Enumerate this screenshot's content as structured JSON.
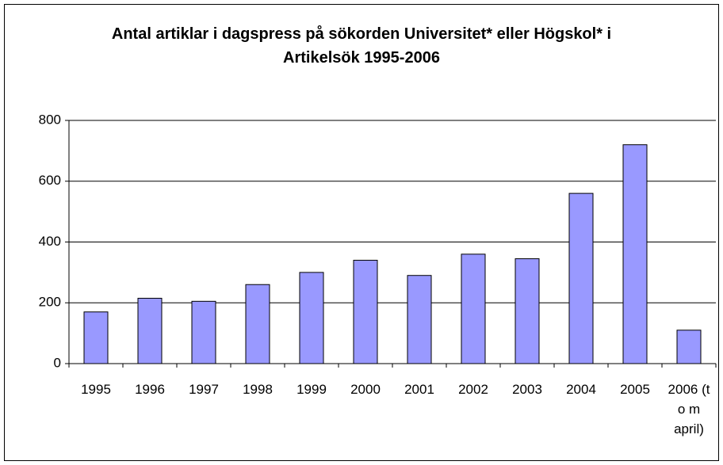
{
  "chart_data": {
    "type": "bar",
    "title": "Antal artiklar i dagspress på sökorden Universitet* eller Högskol* i Artikelsök 1995-2006",
    "categories": [
      "1995",
      "1996",
      "1997",
      "1998",
      "1999",
      "2000",
      "2001",
      "2002",
      "2003",
      "2004",
      "2005",
      "2006 (t o m april)"
    ],
    "values": [
      170,
      215,
      205,
      260,
      300,
      340,
      290,
      360,
      345,
      560,
      720,
      110
    ],
    "color": "#9999ff",
    "ylim": [
      0,
      800
    ],
    "yticks": [
      0,
      200,
      400,
      600,
      800
    ],
    "grid": true
  }
}
